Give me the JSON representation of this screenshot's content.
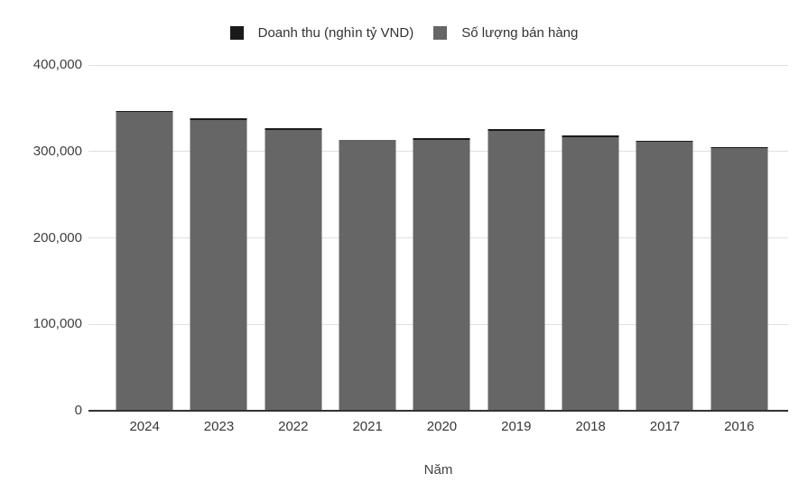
{
  "legend": {
    "items": [
      {
        "label": "Doanh thu (nghìn tỷ VND)",
        "color": "#1a1a1a"
      },
      {
        "label": "Số lượng bán hàng",
        "color": "#666666"
      }
    ]
  },
  "chart_data": {
    "type": "bar",
    "stacked": true,
    "categories": [
      "2024",
      "2023",
      "2022",
      "2021",
      "2020",
      "2019",
      "2018",
      "2017",
      "2016"
    ],
    "series": [
      {
        "name": "Doanh thu (nghìn tỷ VND)",
        "color": "#1a1a1a",
        "values": [
          500,
          2000,
          2000,
          400,
          1500,
          2000,
          2000,
          2000,
          400
        ]
      },
      {
        "name": "Số lượng bán hàng",
        "color": "#666666",
        "values": [
          346000,
          335900,
          325200,
          313100,
          313600,
          324100,
          316400,
          310800,
          304100
        ]
      }
    ],
    "stack_bottom_to_top": [
      "Số lượng bán hàng",
      "Doanh thu (nghìn tỷ VND)"
    ],
    "title": "",
    "xlabel": "Năm",
    "ylabel": "",
    "ylim": [
      0,
      400000
    ],
    "yticks": [
      0,
      100000,
      200000,
      300000,
      400000
    ],
    "ytick_labels": [
      "0",
      "100,000",
      "200,000",
      "300,000",
      "400,000"
    ],
    "grid": true,
    "legend_position": "top"
  },
  "colors": {
    "background": "#ffffff",
    "gridline": "#e0e0e0",
    "baseline": "#333333",
    "axis_text": "#404040",
    "legend_text": "#333333"
  }
}
